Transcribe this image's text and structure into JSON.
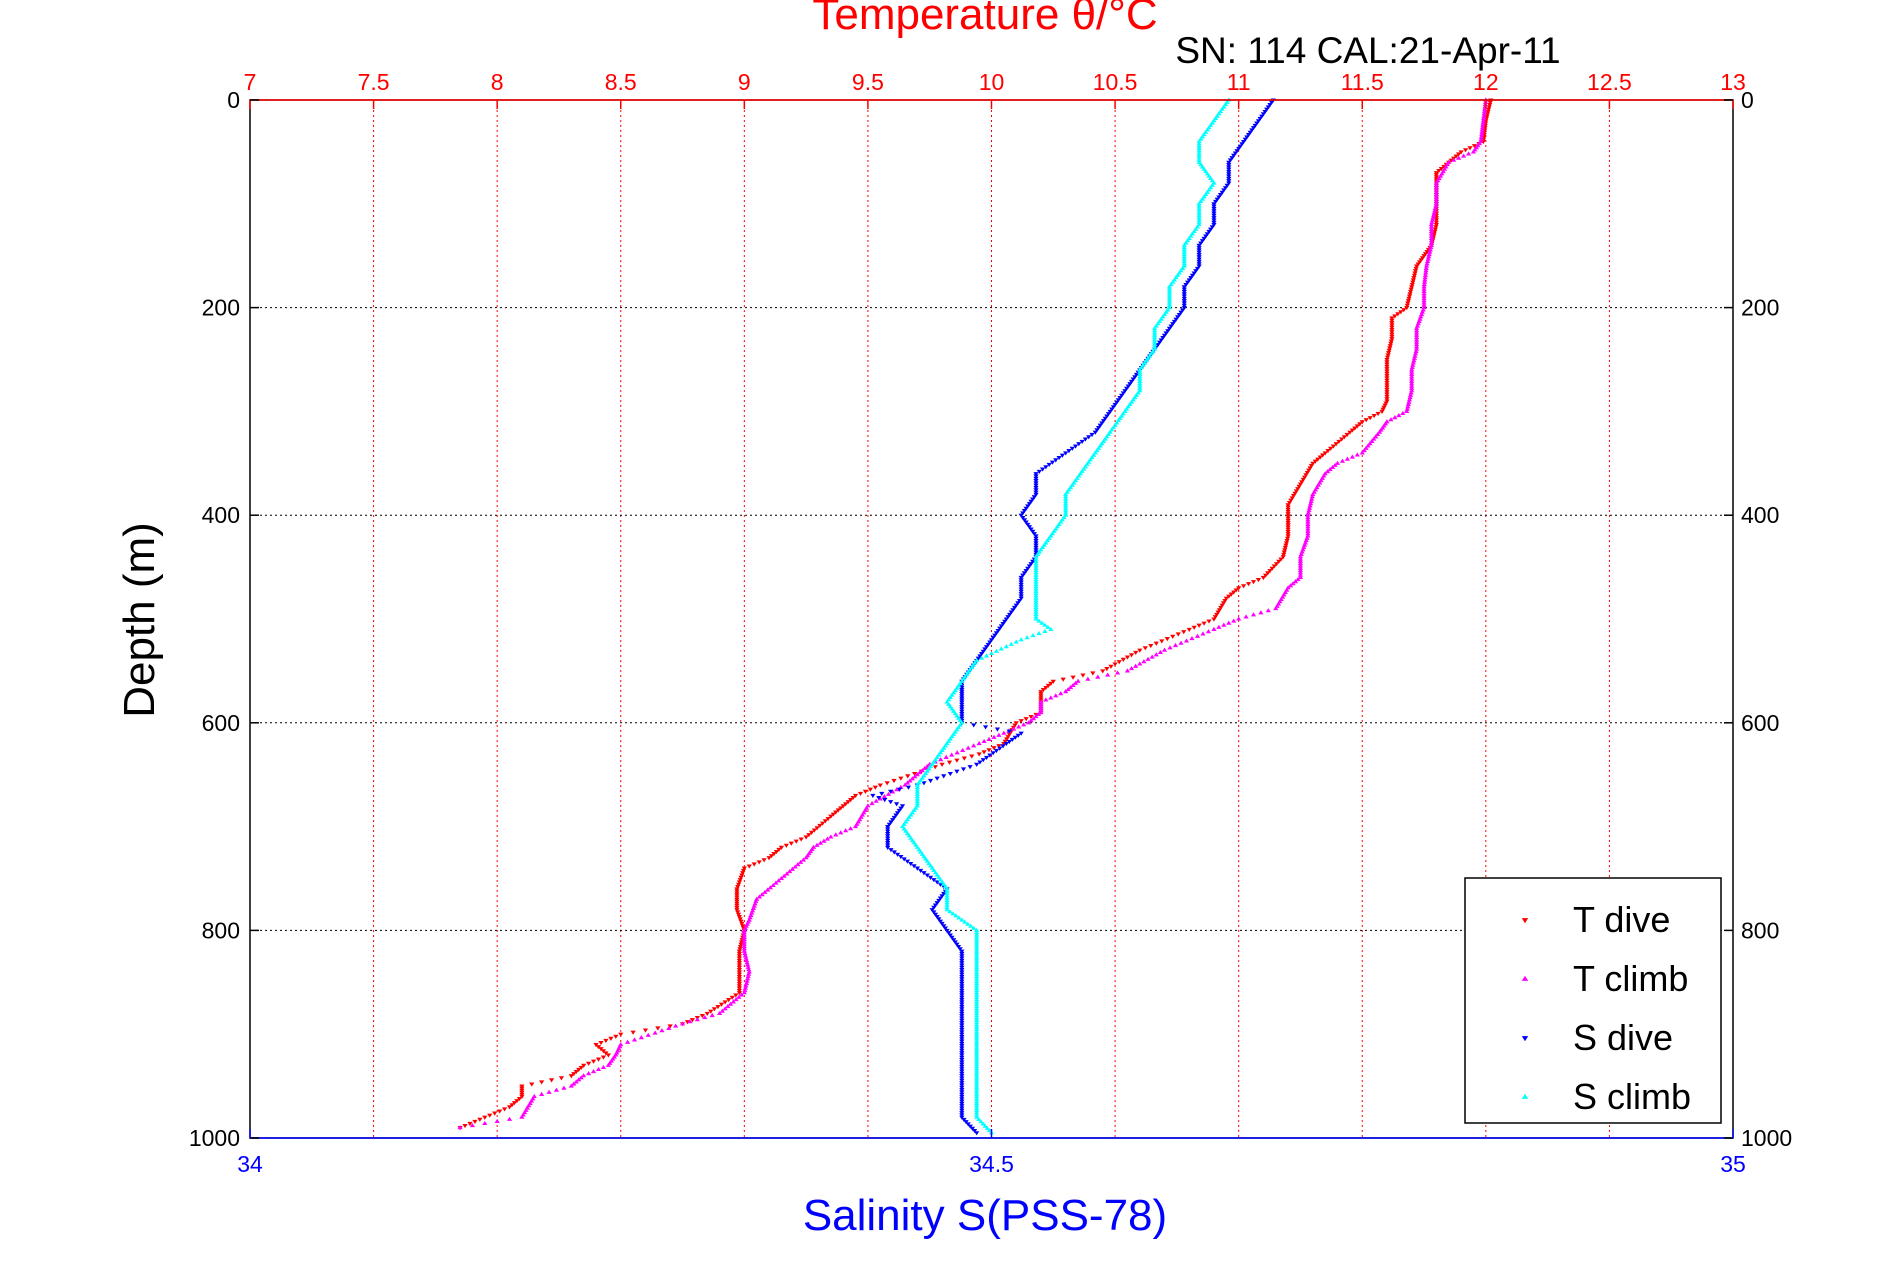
{
  "figure": {
    "header_text": "SN: 114  CAL:21-Apr-11"
  },
  "chart_data": {
    "type": "scatter",
    "title": "Temperature θ/°C",
    "ylabel": "Depth (m)",
    "xlabel": "Salinity S(PSS-78)",
    "xlim_top": [
      7,
      13
    ],
    "xlim_bottom": [
      34,
      35
    ],
    "ylim": [
      0,
      1000
    ],
    "y_reversed": true,
    "grid": true,
    "legend_position": "bottom-right",
    "top_ticks": [
      "7",
      "7.5",
      "8",
      "8.5",
      "9",
      "9.5",
      "10",
      "10.5",
      "11",
      "11.5",
      "12",
      "12.5",
      "13"
    ],
    "top_tick_values": [
      7,
      7.5,
      8,
      8.5,
      9,
      9.5,
      10,
      10.5,
      11,
      11.5,
      12,
      12.5,
      13
    ],
    "bottom_ticks": [
      "34",
      "34.5",
      "35"
    ],
    "bottom_tick_values": [
      34,
      34.5,
      35
    ],
    "left_ticks": [
      "0",
      "200",
      "400",
      "600",
      "800",
      "1000"
    ],
    "right_ticks": [
      "0",
      "200",
      "400",
      "600",
      "800",
      "1000"
    ],
    "y_tick_values": [
      0,
      200,
      400,
      600,
      800,
      1000
    ],
    "colors": {
      "temperature_axis": "#ff0000",
      "salinity_axis": "#0000ff",
      "grid_temperature": "#ff0000",
      "grid_depth": "#000000"
    },
    "series": [
      {
        "name": "T dive",
        "axis": "top",
        "color": "#ff0000",
        "marker": "triangle-down",
        "points": [
          [
            0,
            12.02
          ],
          [
            20,
            12.0
          ],
          [
            40,
            11.99
          ],
          [
            50,
            11.9
          ],
          [
            60,
            11.85
          ],
          [
            70,
            11.8
          ],
          [
            80,
            11.8
          ],
          [
            100,
            11.8
          ],
          [
            120,
            11.8
          ],
          [
            140,
            11.78
          ],
          [
            150,
            11.75
          ],
          [
            160,
            11.72
          ],
          [
            180,
            11.7
          ],
          [
            200,
            11.68
          ],
          [
            210,
            11.62
          ],
          [
            230,
            11.62
          ],
          [
            250,
            11.6
          ],
          [
            270,
            11.6
          ],
          [
            290,
            11.6
          ],
          [
            300,
            11.58
          ],
          [
            310,
            11.5
          ],
          [
            320,
            11.45
          ],
          [
            340,
            11.35
          ],
          [
            350,
            11.3
          ],
          [
            370,
            11.25
          ],
          [
            390,
            11.2
          ],
          [
            420,
            11.2
          ],
          [
            440,
            11.18
          ],
          [
            460,
            11.1
          ],
          [
            470,
            11.0
          ],
          [
            480,
            10.95
          ],
          [
            500,
            10.9
          ],
          [
            510,
            10.8
          ],
          [
            530,
            10.6
          ],
          [
            550,
            10.45
          ],
          [
            560,
            10.25
          ],
          [
            570,
            10.2
          ],
          [
            580,
            10.2
          ],
          [
            590,
            10.2
          ],
          [
            600,
            10.1
          ],
          [
            620,
            10.05
          ],
          [
            630,
            9.95
          ],
          [
            640,
            9.8
          ],
          [
            660,
            9.55
          ],
          [
            670,
            9.45
          ],
          [
            680,
            9.4
          ],
          [
            690,
            9.35
          ],
          [
            710,
            9.25
          ],
          [
            720,
            9.15
          ],
          [
            730,
            9.1
          ],
          [
            740,
            9.0
          ],
          [
            760,
            8.97
          ],
          [
            770,
            8.97
          ],
          [
            780,
            8.97
          ],
          [
            800,
            9.0
          ],
          [
            820,
            8.98
          ],
          [
            840,
            8.98
          ],
          [
            860,
            8.98
          ],
          [
            880,
            8.85
          ],
          [
            890,
            8.75
          ],
          [
            900,
            8.5
          ],
          [
            910,
            8.4
          ],
          [
            920,
            8.45
          ],
          [
            930,
            8.35
          ],
          [
            940,
            8.3
          ],
          [
            950,
            8.1
          ],
          [
            960,
            8.1
          ],
          [
            970,
            8.05
          ],
          [
            980,
            7.95
          ],
          [
            990,
            7.85
          ]
        ]
      },
      {
        "name": "T climb",
        "axis": "top",
        "color": "#ff00ff",
        "marker": "triangle-up",
        "points": [
          [
            0,
            12.0
          ],
          [
            20,
            11.99
          ],
          [
            40,
            11.98
          ],
          [
            50,
            11.95
          ],
          [
            60,
            11.85
          ],
          [
            80,
            11.8
          ],
          [
            100,
            11.8
          ],
          [
            120,
            11.78
          ],
          [
            140,
            11.78
          ],
          [
            160,
            11.76
          ],
          [
            180,
            11.75
          ],
          [
            200,
            11.75
          ],
          [
            220,
            11.72
          ],
          [
            240,
            11.72
          ],
          [
            260,
            11.7
          ],
          [
            280,
            11.7
          ],
          [
            300,
            11.68
          ],
          [
            310,
            11.6
          ],
          [
            320,
            11.57
          ],
          [
            340,
            11.5
          ],
          [
            350,
            11.4
          ],
          [
            360,
            11.35
          ],
          [
            380,
            11.3
          ],
          [
            400,
            11.28
          ],
          [
            420,
            11.28
          ],
          [
            440,
            11.25
          ],
          [
            460,
            11.25
          ],
          [
            470,
            11.2
          ],
          [
            490,
            11.15
          ],
          [
            500,
            11.0
          ],
          [
            510,
            10.9
          ],
          [
            530,
            10.7
          ],
          [
            550,
            10.55
          ],
          [
            560,
            10.35
          ],
          [
            570,
            10.3
          ],
          [
            580,
            10.2
          ],
          [
            590,
            10.2
          ],
          [
            600,
            10.15
          ],
          [
            610,
            10.05
          ],
          [
            620,
            9.95
          ],
          [
            640,
            9.75
          ],
          [
            650,
            9.7
          ],
          [
            660,
            9.65
          ],
          [
            680,
            9.5
          ],
          [
            700,
            9.45
          ],
          [
            710,
            9.35
          ],
          [
            720,
            9.28
          ],
          [
            730,
            9.25
          ],
          [
            750,
            9.15
          ],
          [
            770,
            9.05
          ],
          [
            790,
            9.02
          ],
          [
            800,
            9.0
          ],
          [
            820,
            9.0
          ],
          [
            840,
            9.02
          ],
          [
            860,
            9.0
          ],
          [
            880,
            8.9
          ],
          [
            890,
            8.75
          ],
          [
            910,
            8.5
          ],
          [
            920,
            8.48
          ],
          [
            930,
            8.45
          ],
          [
            940,
            8.35
          ],
          [
            950,
            8.3
          ],
          [
            960,
            8.15
          ],
          [
            980,
            8.1
          ],
          [
            990,
            7.85
          ]
        ]
      },
      {
        "name": "S dive",
        "axis": "bottom",
        "color": "#0000ff",
        "marker": "triangle-down",
        "points": [
          [
            0,
            34.69
          ],
          [
            20,
            34.68
          ],
          [
            40,
            34.67
          ],
          [
            60,
            34.66
          ],
          [
            80,
            34.66
          ],
          [
            100,
            34.65
          ],
          [
            120,
            34.65
          ],
          [
            140,
            34.64
          ],
          [
            160,
            34.64
          ],
          [
            180,
            34.63
          ],
          [
            200,
            34.63
          ],
          [
            220,
            34.62
          ],
          [
            240,
            34.61
          ],
          [
            260,
            34.6
          ],
          [
            280,
            34.59
          ],
          [
            300,
            34.58
          ],
          [
            320,
            34.57
          ],
          [
            340,
            34.55
          ],
          [
            360,
            34.53
          ],
          [
            380,
            34.53
          ],
          [
            400,
            34.52
          ],
          [
            420,
            34.53
          ],
          [
            440,
            34.53
          ],
          [
            460,
            34.52
          ],
          [
            480,
            34.52
          ],
          [
            500,
            34.51
          ],
          [
            520,
            34.5
          ],
          [
            540,
            34.49
          ],
          [
            560,
            34.48
          ],
          [
            570,
            34.48
          ],
          [
            580,
            34.48
          ],
          [
            600,
            34.48
          ],
          [
            610,
            34.52
          ],
          [
            620,
            34.51
          ],
          [
            640,
            34.49
          ],
          [
            660,
            34.45
          ],
          [
            670,
            34.42
          ],
          [
            680,
            34.44
          ],
          [
            700,
            34.43
          ],
          [
            720,
            34.43
          ],
          [
            740,
            34.45
          ],
          [
            760,
            34.47
          ],
          [
            780,
            34.46
          ],
          [
            800,
            34.47
          ],
          [
            820,
            34.48
          ],
          [
            840,
            34.48
          ],
          [
            860,
            34.48
          ],
          [
            880,
            34.48
          ],
          [
            900,
            34.48
          ],
          [
            920,
            34.48
          ],
          [
            940,
            34.48
          ],
          [
            960,
            34.48
          ],
          [
            980,
            34.48
          ],
          [
            995,
            34.49
          ]
        ]
      },
      {
        "name": "S climb",
        "axis": "bottom",
        "color": "#00ffff",
        "marker": "triangle-up",
        "points": [
          [
            0,
            34.66
          ],
          [
            20,
            34.65
          ],
          [
            40,
            34.64
          ],
          [
            60,
            34.64
          ],
          [
            80,
            34.65
          ],
          [
            100,
            34.64
          ],
          [
            120,
            34.64
          ],
          [
            140,
            34.63
          ],
          [
            160,
            34.63
          ],
          [
            180,
            34.62
          ],
          [
            200,
            34.62
          ],
          [
            220,
            34.61
          ],
          [
            240,
            34.61
          ],
          [
            260,
            34.6
          ],
          [
            280,
            34.6
          ],
          [
            300,
            34.59
          ],
          [
            320,
            34.58
          ],
          [
            340,
            34.57
          ],
          [
            360,
            34.56
          ],
          [
            380,
            34.55
          ],
          [
            400,
            34.55
          ],
          [
            420,
            34.54
          ],
          [
            440,
            34.53
          ],
          [
            460,
            34.53
          ],
          [
            480,
            34.53
          ],
          [
            500,
            34.53
          ],
          [
            510,
            34.54
          ],
          [
            520,
            34.52
          ],
          [
            540,
            34.49
          ],
          [
            560,
            34.48
          ],
          [
            580,
            34.47
          ],
          [
            600,
            34.48
          ],
          [
            620,
            34.47
          ],
          [
            640,
            34.46
          ],
          [
            660,
            34.45
          ],
          [
            680,
            34.45
          ],
          [
            700,
            34.44
          ],
          [
            720,
            34.45
          ],
          [
            740,
            34.46
          ],
          [
            760,
            34.47
          ],
          [
            780,
            34.47
          ],
          [
            790,
            34.48
          ],
          [
            800,
            34.49
          ],
          [
            820,
            34.49
          ],
          [
            840,
            34.49
          ],
          [
            860,
            34.49
          ],
          [
            880,
            34.49
          ],
          [
            900,
            34.49
          ],
          [
            920,
            34.49
          ],
          [
            940,
            34.49
          ],
          [
            960,
            34.49
          ],
          [
            980,
            34.49
          ],
          [
            995,
            34.5
          ]
        ]
      }
    ],
    "legend": [
      {
        "label": "T dive",
        "color": "#ff0000",
        "marker": "triangle-down"
      },
      {
        "label": "T climb",
        "color": "#ff00ff",
        "marker": "triangle-up"
      },
      {
        "label": "S dive",
        "color": "#0000ff",
        "marker": "triangle-down"
      },
      {
        "label": "S climb",
        "color": "#00ffff",
        "marker": "triangle-up"
      }
    ]
  }
}
